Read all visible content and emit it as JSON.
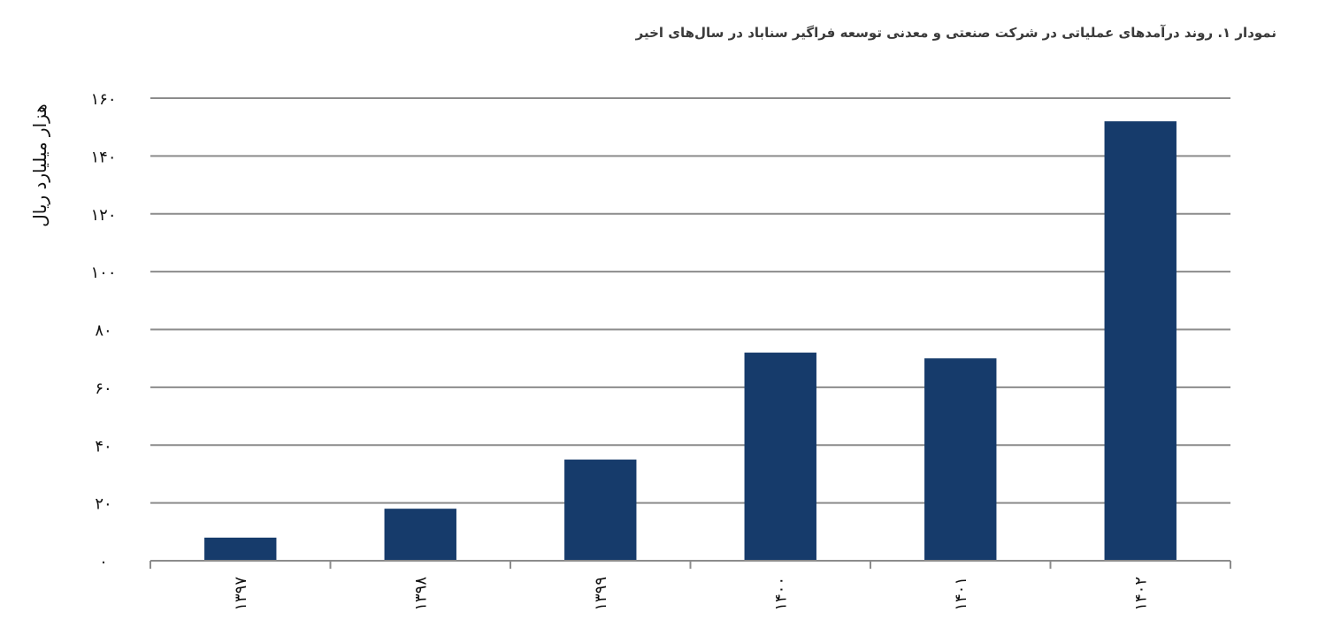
{
  "chart_data": {
    "type": "bar",
    "title": "نمودار ۱. روند درآمدهای عملیاتی در شرکت صنعتی و معدنی توسعه فراگیر سناباد در سال‌های اخیر",
    "xlabel": "",
    "ylabel": "هزار میلیارد ریال",
    "categories": [
      "۱۳۹۷",
      "۱۳۹۸",
      "۱۳۹۹",
      "۱۴۰۰",
      "۱۴۰۱",
      "۱۴۰۲"
    ],
    "values": [
      8,
      18,
      35,
      72,
      70,
      152
    ],
    "ylim": [
      0,
      160
    ],
    "yticks": [
      0,
      20,
      40,
      60,
      80,
      100,
      120,
      140,
      160
    ],
    "ytick_labels": [
      "۰",
      "۲۰",
      "۴۰",
      "۶۰",
      "۸۰",
      "۱۰۰",
      "۱۲۰",
      "۱۴۰",
      "۱۶۰"
    ],
    "grid": true,
    "bar_color": "#163b6b",
    "grid_color": "#8c8c8c",
    "legend": "none"
  }
}
